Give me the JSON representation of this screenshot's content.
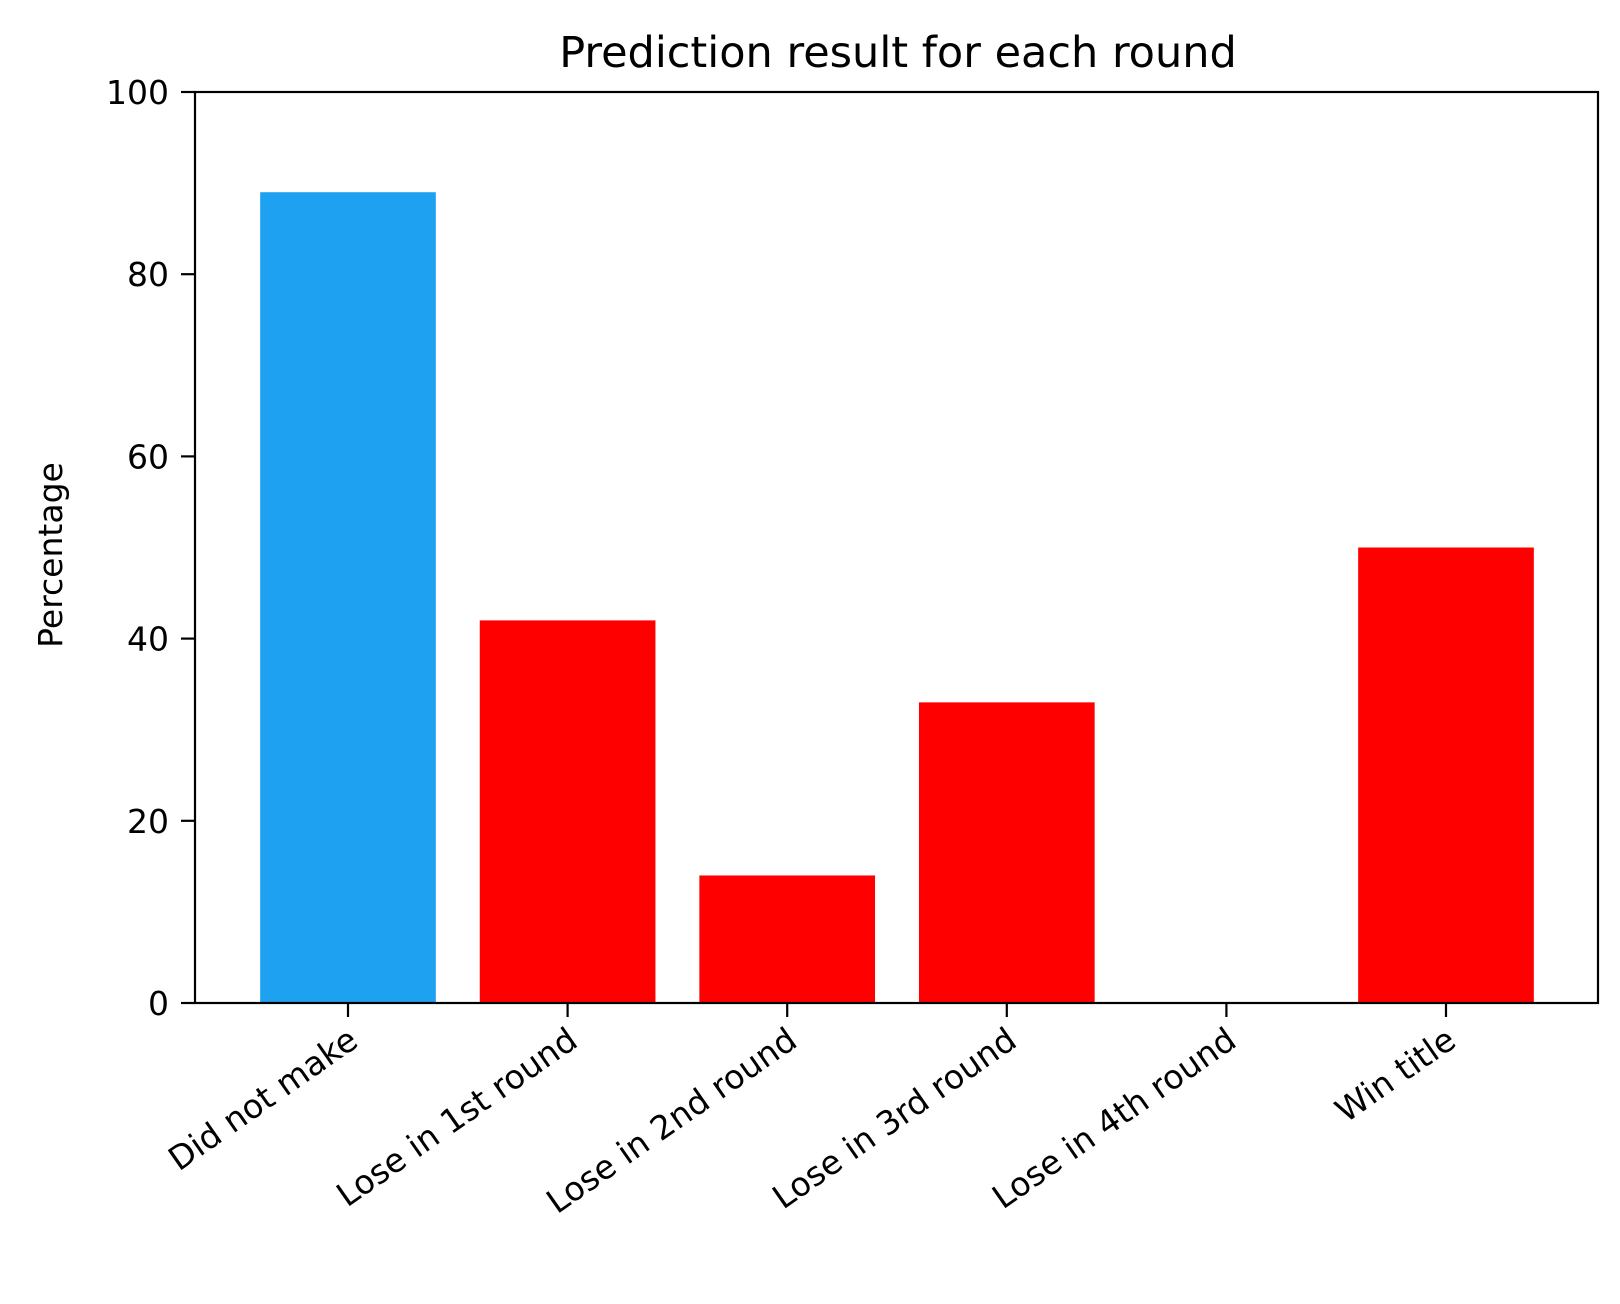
{
  "chart_data": {
    "type": "bar",
    "title": "Prediction result for each round",
    "xlabel": "",
    "ylabel": "Percentage",
    "categories": [
      "Did not make",
      "Lose in 1st round",
      "Lose in 2nd round",
      "Lose in 3rd round",
      "Lose in 4th round",
      "Win title"
    ],
    "values": [
      89,
      42,
      14,
      33,
      0,
      50
    ],
    "bar_colors": [
      "#1fa1f2",
      "#ff0000",
      "#ff0000",
      "#ff0000",
      "#ff0000",
      "#ff0000"
    ],
    "ylim": [
      0,
      100
    ],
    "yticks": [
      0,
      20,
      40,
      60,
      80,
      100
    ],
    "grid": false,
    "legend": "none"
  }
}
